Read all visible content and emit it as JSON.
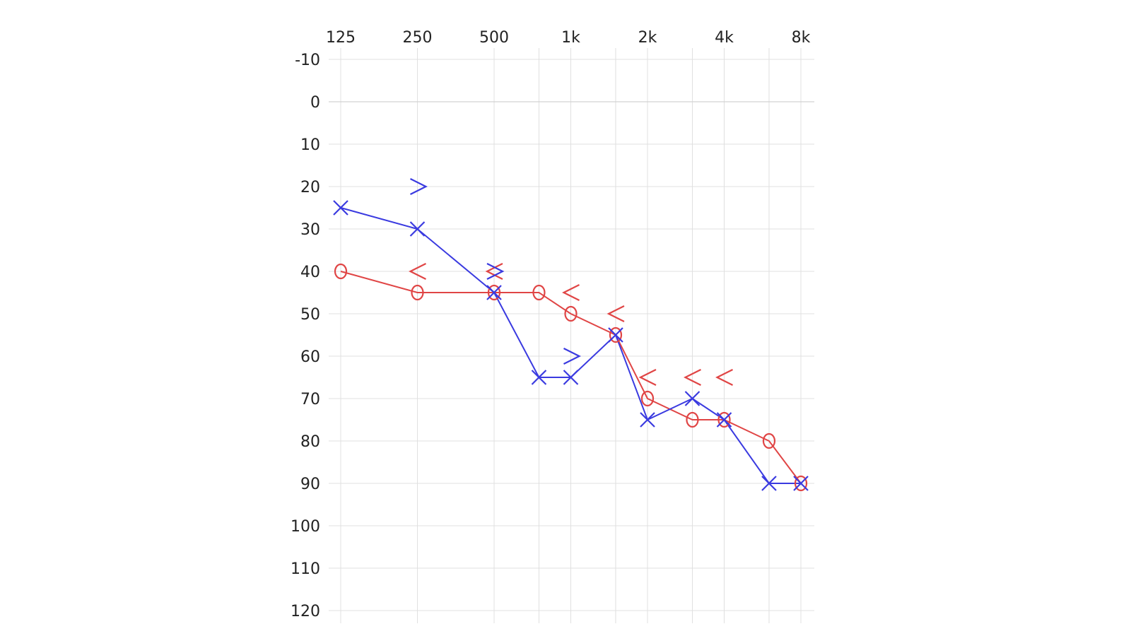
{
  "chart_data": {
    "type": "line",
    "xscale": "log",
    "x_ticks": [
      {
        "label": "125",
        "value": 125
      },
      {
        "label": "250",
        "value": 250
      },
      {
        "label": "500",
        "value": 500
      },
      {
        "label": "1k",
        "value": 1000
      },
      {
        "label": "2k",
        "value": 2000
      },
      {
        "label": "4k",
        "value": 4000
      },
      {
        "label": "8k",
        "value": 8000
      }
    ],
    "x_minor_gridlines": [
      750,
      1500,
      3000,
      6000
    ],
    "y_ticks": [
      -10,
      0,
      10,
      20,
      30,
      40,
      50,
      60,
      70,
      80,
      90,
      100,
      110,
      120
    ],
    "ylim": [
      -10,
      120
    ],
    "y_inverted": true,
    "grid": true,
    "series": [
      {
        "symbol": "O",
        "color": "#e04545",
        "points": [
          {
            "x": 125,
            "y": 40,
            "connect": true
          },
          {
            "x": 250,
            "y": 45,
            "connect": true
          },
          {
            "x": 500,
            "y": 45,
            "connect": true
          },
          {
            "x": 750,
            "y": 45,
            "connect": true
          },
          {
            "x": 1000,
            "y": 50,
            "connect": true
          },
          {
            "x": 1500,
            "y": 55,
            "connect": true
          },
          {
            "x": 2000,
            "y": 70,
            "connect": true
          },
          {
            "x": 3000,
            "y": 75,
            "connect": true
          },
          {
            "x": 4000,
            "y": 75,
            "connect": true
          },
          {
            "x": 6000,
            "y": 80,
            "connect": true
          },
          {
            "x": 8000,
            "y": 90,
            "connect": true
          }
        ]
      },
      {
        "symbol": "X",
        "color": "#3a3ae0",
        "points": [
          {
            "x": 125,
            "y": 25,
            "connect": true
          },
          {
            "x": 250,
            "y": 30,
            "connect": true
          },
          {
            "x": 500,
            "y": 45,
            "connect": true
          },
          {
            "x": 750,
            "y": 65,
            "connect": true
          },
          {
            "x": 1000,
            "y": 65,
            "connect": true
          },
          {
            "x": 1500,
            "y": 55,
            "connect": true
          },
          {
            "x": 2000,
            "y": 75,
            "connect": true
          },
          {
            "x": 3000,
            "y": 70,
            "connect": true
          },
          {
            "x": 4000,
            "y": 75,
            "connect": true
          },
          {
            "x": 6000,
            "y": 90,
            "connect": true
          },
          {
            "x": 8000,
            "y": 90,
            "connect": true
          }
        ]
      },
      {
        "symbol": "<",
        "color": "#e04545",
        "points": [
          {
            "x": 250,
            "y": 40
          },
          {
            "x": 500,
            "y": 40
          },
          {
            "x": 1000,
            "y": 45
          },
          {
            "x": 1500,
            "y": 50
          },
          {
            "x": 2000,
            "y": 65
          },
          {
            "x": 3000,
            "y": 65
          },
          {
            "x": 4000,
            "y": 65
          }
        ]
      },
      {
        "symbol": ">",
        "color": "#3a3ae0",
        "points": [
          {
            "x": 250,
            "y": 20
          },
          {
            "x": 500,
            "y": 40
          },
          {
            "x": 1000,
            "y": 60
          }
        ]
      }
    ]
  }
}
